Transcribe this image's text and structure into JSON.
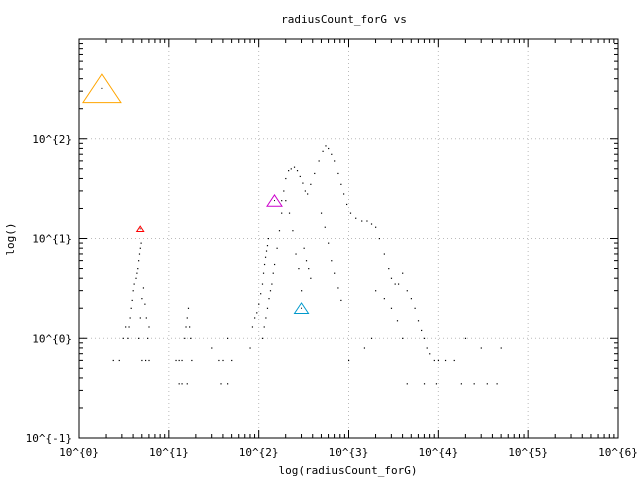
{
  "chart_data": {
    "type": "scatter",
    "title": "radiusCount_forG vs",
    "xlabel": "log(radiusCount_forG)",
    "ylabel": "log()",
    "x_scale": "log",
    "y_scale": "log",
    "xlim": [
      1,
      1000000
    ],
    "ylim": [
      0.1,
      1000
    ],
    "x_ticks": [
      {
        "value": 1,
        "label": "10^{0}"
      },
      {
        "value": 10,
        "label": "10^{1}"
      },
      {
        "value": 100,
        "label": "10^{2}"
      },
      {
        "value": 1000,
        "label": "10^{3}"
      },
      {
        "value": 10000,
        "label": "10^{4}"
      },
      {
        "value": 100000,
        "label": "10^{5}"
      },
      {
        "value": 1000000,
        "label": "10^{6}"
      }
    ],
    "y_ticks": [
      {
        "value": 0.1,
        "label": "10^{-1}"
      },
      {
        "value": 1,
        "label": "10^{0}"
      },
      {
        "value": 10,
        "label": "10^{1}"
      },
      {
        "value": 100,
        "label": "10^{2}"
      }
    ],
    "grid": true,
    "legend": "none",
    "colors": {
      "points": "#000000",
      "grid": "#bbbbbb"
    },
    "markers": [
      {
        "x": 1.8,
        "y": 320,
        "size": 38,
        "color": "#ffa500"
      },
      {
        "x": 4.8,
        "y": 12.5,
        "size": 7,
        "color": "#ff0000"
      },
      {
        "x": 150,
        "y": 24,
        "size": 15,
        "color": "#cc00cc"
      },
      {
        "x": 300,
        "y": 2.0,
        "size": 14,
        "color": "#0099cc"
      }
    ],
    "series": [
      {
        "points": [
          [
            2.4,
            0.6
          ],
          [
            2.8,
            0.6
          ],
          [
            3.1,
            1.0
          ],
          [
            3.3,
            1.3
          ],
          [
            3.5,
            1.0
          ],
          [
            3.6,
            1.3
          ],
          [
            3.7,
            1.6
          ],
          [
            3.8,
            2.0
          ],
          [
            3.9,
            2.4
          ],
          [
            4.0,
            3.0
          ],
          [
            4.1,
            3.5
          ],
          [
            4.3,
            4.0
          ],
          [
            4.4,
            4.5
          ],
          [
            4.5,
            5.0
          ],
          [
            4.6,
            6.0
          ],
          [
            4.7,
            7.0
          ],
          [
            4.8,
            8.0
          ],
          [
            4.9,
            9.0
          ],
          [
            4.6,
            1.0
          ],
          [
            4.8,
            1.6
          ],
          [
            5.0,
            2.5
          ],
          [
            5.2,
            3.2
          ],
          [
            5.4,
            2.2
          ],
          [
            5.6,
            1.6
          ],
          [
            5.8,
            1.0
          ],
          [
            6.0,
            1.3
          ],
          [
            5.0,
            0.6
          ],
          [
            5.5,
            0.6
          ],
          [
            6.0,
            0.6
          ],
          [
            12,
            0.6
          ],
          [
            13,
            0.6
          ],
          [
            14,
            0.6
          ],
          [
            15,
            1.0
          ],
          [
            15.5,
            1.3
          ],
          [
            16,
            1.6
          ],
          [
            16.5,
            2.0
          ],
          [
            17,
            1.3
          ],
          [
            17.5,
            1.0
          ],
          [
            18,
            0.6
          ],
          [
            13,
            0.35
          ],
          [
            14,
            0.35
          ],
          [
            16,
            0.35
          ],
          [
            30,
            0.8
          ],
          [
            36,
            0.6
          ],
          [
            40,
            0.6
          ],
          [
            45,
            1.0
          ],
          [
            50,
            0.6
          ],
          [
            38,
            0.35
          ],
          [
            45,
            0.35
          ],
          [
            80,
            0.8
          ],
          [
            85,
            1.3
          ],
          [
            90,
            1.6
          ],
          [
            95,
            1.8
          ],
          [
            100,
            2.2
          ],
          [
            105,
            2.8
          ],
          [
            110,
            3.5
          ],
          [
            113,
            4.5
          ],
          [
            116,
            5.5
          ],
          [
            119,
            6.5
          ],
          [
            122,
            7.5
          ],
          [
            125,
            8.5
          ],
          [
            128,
            10
          ],
          [
            110,
            1.0
          ],
          [
            115,
            1.3
          ],
          [
            120,
            1.6
          ],
          [
            125,
            2.0
          ],
          [
            130,
            2.5
          ],
          [
            135,
            3.0
          ],
          [
            140,
            3.5
          ],
          [
            145,
            4.5
          ],
          [
            150,
            5.5
          ],
          [
            160,
            8.0
          ],
          [
            170,
            12
          ],
          [
            180,
            18
          ],
          [
            190,
            30
          ],
          [
            200,
            40
          ],
          [
            215,
            48
          ],
          [
            230,
            50
          ],
          [
            250,
            52
          ],
          [
            270,
            48
          ],
          [
            290,
            42
          ],
          [
            310,
            36
          ],
          [
            330,
            30
          ],
          [
            350,
            28
          ],
          [
            380,
            35
          ],
          [
            420,
            45
          ],
          [
            470,
            60
          ],
          [
            520,
            75
          ],
          [
            560,
            85
          ],
          [
            600,
            80
          ],
          [
            650,
            70
          ],
          [
            700,
            60
          ],
          [
            760,
            45
          ],
          [
            820,
            35
          ],
          [
            880,
            28
          ],
          [
            950,
            22
          ],
          [
            1050,
            18
          ],
          [
            1200,
            16
          ],
          [
            1400,
            15
          ],
          [
            1600,
            15
          ],
          [
            1800,
            14
          ],
          [
            2000,
            13
          ],
          [
            2200,
            10
          ],
          [
            2500,
            7
          ],
          [
            2800,
            5
          ],
          [
            3000,
            4
          ],
          [
            3300,
            3.5
          ],
          [
            3600,
            3.5
          ],
          [
            4000,
            4.5
          ],
          [
            4500,
            3.0
          ],
          [
            5000,
            2.5
          ],
          [
            5500,
            2.0
          ],
          [
            6000,
            1.5
          ],
          [
            6500,
            1.2
          ],
          [
            7000,
            1.0
          ],
          [
            7500,
            0.8
          ],
          [
            8000,
            0.7
          ],
          [
            9000,
            0.6
          ],
          [
            10000,
            0.6
          ],
          [
            12000,
            0.6
          ],
          [
            15000,
            0.6
          ],
          [
            20000,
            1.0
          ],
          [
            30000,
            0.8
          ],
          [
            50000,
            0.8
          ],
          [
            2000,
            3.0
          ],
          [
            2500,
            2.5
          ],
          [
            3000,
            2.0
          ],
          [
            3500,
            1.5
          ],
          [
            4000,
            1.0
          ],
          [
            500,
            18
          ],
          [
            550,
            13
          ],
          [
            600,
            9
          ],
          [
            650,
            6
          ],
          [
            700,
            4.5
          ],
          [
            760,
            3.2
          ],
          [
            820,
            2.4
          ],
          [
            320,
            8
          ],
          [
            340,
            6
          ],
          [
            360,
            5
          ],
          [
            380,
            4
          ],
          [
            300,
            3
          ],
          [
            280,
            5
          ],
          [
            260,
            7
          ],
          [
            240,
            12
          ],
          [
            220,
            18
          ],
          [
            200,
            24
          ],
          [
            180,
            24
          ],
          [
            1000,
            0.6
          ],
          [
            1500,
            0.8
          ],
          [
            1800,
            1.0
          ],
          [
            4500,
            0.35
          ],
          [
            7000,
            0.35
          ],
          [
            9500,
            0.35
          ],
          [
            18000,
            0.35
          ],
          [
            25000,
            0.35
          ],
          [
            35000,
            0.35
          ],
          [
            45000,
            0.35
          ]
        ]
      }
    ]
  }
}
